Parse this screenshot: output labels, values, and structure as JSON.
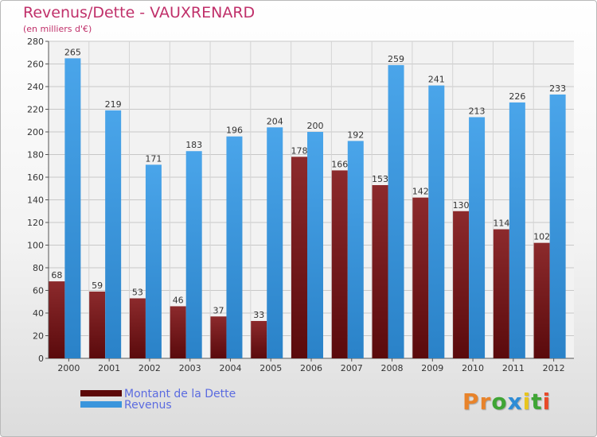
{
  "header": {
    "title": "Revenus/Dette - VAUXRENARD",
    "subtitle": "(en milliers d'€)"
  },
  "colors": {
    "title": "#c0306a",
    "debt_bar": "#7a1c1e",
    "revenue_bar": "#3a95dc",
    "legend_text": "#5b6be0",
    "plot_background": "#f2f2f2"
  },
  "legend": {
    "items": [
      {
        "label": "Montant de la Dette",
        "color": "#5c0808"
      },
      {
        "label": "Revenus",
        "color": "#3a95dc"
      }
    ]
  },
  "logo": {
    "text": "Proxiti",
    "letter_colors": [
      "#e8832a",
      "#e8832a",
      "#3fa535",
      "#2d8cd6",
      "#e8c51e",
      "#3fa535",
      "#e84a2a"
    ]
  },
  "chart_data": {
    "type": "bar",
    "title": "Revenus/Dette - VAUXRENARD",
    "ylabel": "(en milliers d'€)",
    "xlabel": "",
    "categories": [
      "2000",
      "2001",
      "2002",
      "2003",
      "2004",
      "2005",
      "2006",
      "2007",
      "2008",
      "2009",
      "2010",
      "2011",
      "2012"
    ],
    "series": [
      {
        "name": "Montant de la Dette",
        "values": [
          68,
          59,
          53,
          46,
          37,
          33,
          178,
          166,
          153,
          142,
          130,
          114,
          102
        ]
      },
      {
        "name": "Revenus",
        "values": [
          265,
          219,
          171,
          183,
          196,
          204,
          200,
          192,
          259,
          241,
          213,
          226,
          233
        ]
      }
    ],
    "ylim": [
      0,
      280
    ],
    "yticks": [
      0,
      20,
      40,
      60,
      80,
      100,
      120,
      140,
      160,
      180,
      200,
      220,
      240,
      260,
      280
    ],
    "grid": true,
    "legend_position": "bottom-left"
  }
}
